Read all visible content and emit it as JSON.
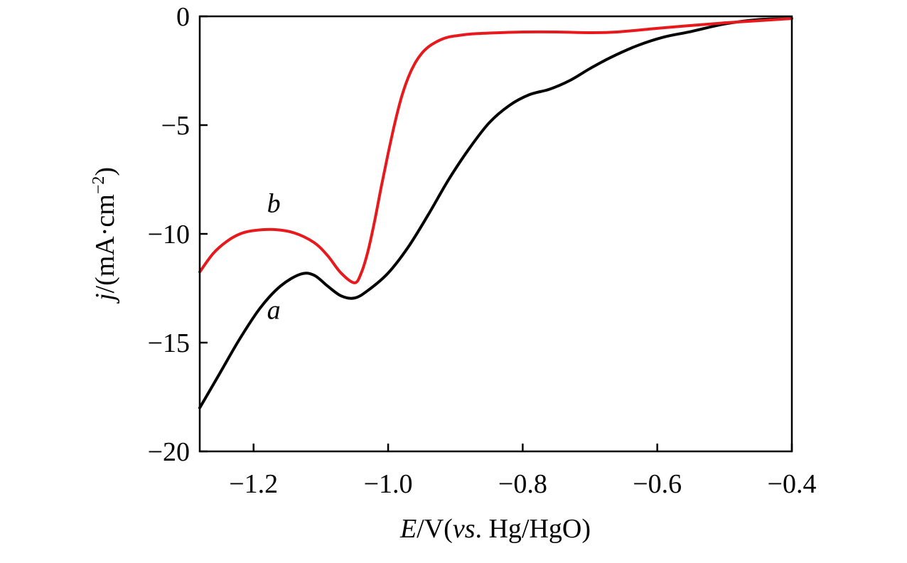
{
  "chart_data": {
    "type": "line",
    "title": "",
    "xlabel": {
      "italic_symbol": "E",
      "unit_prefix": "/V(",
      "italic_vs": "vs",
      "ref_electrode": ". Hg/HgO)"
    },
    "ylabel": {
      "italic_symbol": "j",
      "unit": "/(mA·cm",
      "superscript": "−2",
      "close": ")"
    },
    "xlim": [
      -1.28,
      -0.4
    ],
    "ylim": [
      -20,
      0
    ],
    "x_ticks": [
      -1.2,
      -1.0,
      -0.8,
      -0.6,
      -0.4
    ],
    "x_tick_labels": [
      "−1.2",
      "−1.0",
      "−0.8",
      "−0.6",
      "−0.4"
    ],
    "y_ticks": [
      0,
      -5,
      -10,
      -15,
      -20
    ],
    "y_tick_labels": [
      "0",
      "−5",
      "−10",
      "−15",
      "−20"
    ],
    "grid": false,
    "series": [
      {
        "name": "a",
        "color": "#000000",
        "label_position": {
          "x": -1.17,
          "y": -13.9
        },
        "x": [
          -1.28,
          -1.25,
          -1.22,
          -1.19,
          -1.16,
          -1.13,
          -1.11,
          -1.09,
          -1.07,
          -1.05,
          -1.03,
          -1.0,
          -0.97,
          -0.94,
          -0.91,
          -0.88,
          -0.85,
          -0.82,
          -0.79,
          -0.76,
          -0.73,
          -0.7,
          -0.67,
          -0.63,
          -0.59,
          -0.55,
          -0.5,
          -0.45,
          -0.4
        ],
        "y": [
          -18.0,
          -16.4,
          -14.8,
          -13.4,
          -12.4,
          -11.85,
          -11.9,
          -12.4,
          -12.85,
          -12.95,
          -12.6,
          -11.8,
          -10.6,
          -9.1,
          -7.5,
          -6.1,
          -4.9,
          -4.1,
          -3.6,
          -3.35,
          -2.95,
          -2.4,
          -1.9,
          -1.35,
          -0.95,
          -0.7,
          -0.35,
          -0.15,
          -0.1
        ]
      },
      {
        "name": "b",
        "color": "#e8191c",
        "label_position": {
          "x": -1.17,
          "y": -9.0
        },
        "x": [
          -1.28,
          -1.26,
          -1.24,
          -1.22,
          -1.2,
          -1.17,
          -1.14,
          -1.11,
          -1.09,
          -1.07,
          -1.05,
          -1.04,
          -1.03,
          -1.02,
          -1.01,
          -1.0,
          -0.99,
          -0.98,
          -0.97,
          -0.96,
          -0.95,
          -0.94,
          -0.93,
          -0.92,
          -0.91,
          -0.9,
          -0.88,
          -0.85,
          -0.8,
          -0.75,
          -0.7,
          -0.66,
          -0.6,
          -0.55,
          -0.5,
          -0.45,
          -0.4
        ],
        "y": [
          -11.75,
          -10.9,
          -10.35,
          -10.0,
          -9.85,
          -9.8,
          -9.95,
          -10.4,
          -11.0,
          -11.8,
          -12.25,
          -11.8,
          -10.8,
          -9.4,
          -7.8,
          -6.3,
          -4.9,
          -3.7,
          -2.8,
          -2.15,
          -1.7,
          -1.4,
          -1.2,
          -1.05,
          -0.95,
          -0.9,
          -0.82,
          -0.77,
          -0.72,
          -0.72,
          -0.75,
          -0.72,
          -0.55,
          -0.42,
          -0.3,
          -0.2,
          -0.1
        ]
      }
    ]
  }
}
